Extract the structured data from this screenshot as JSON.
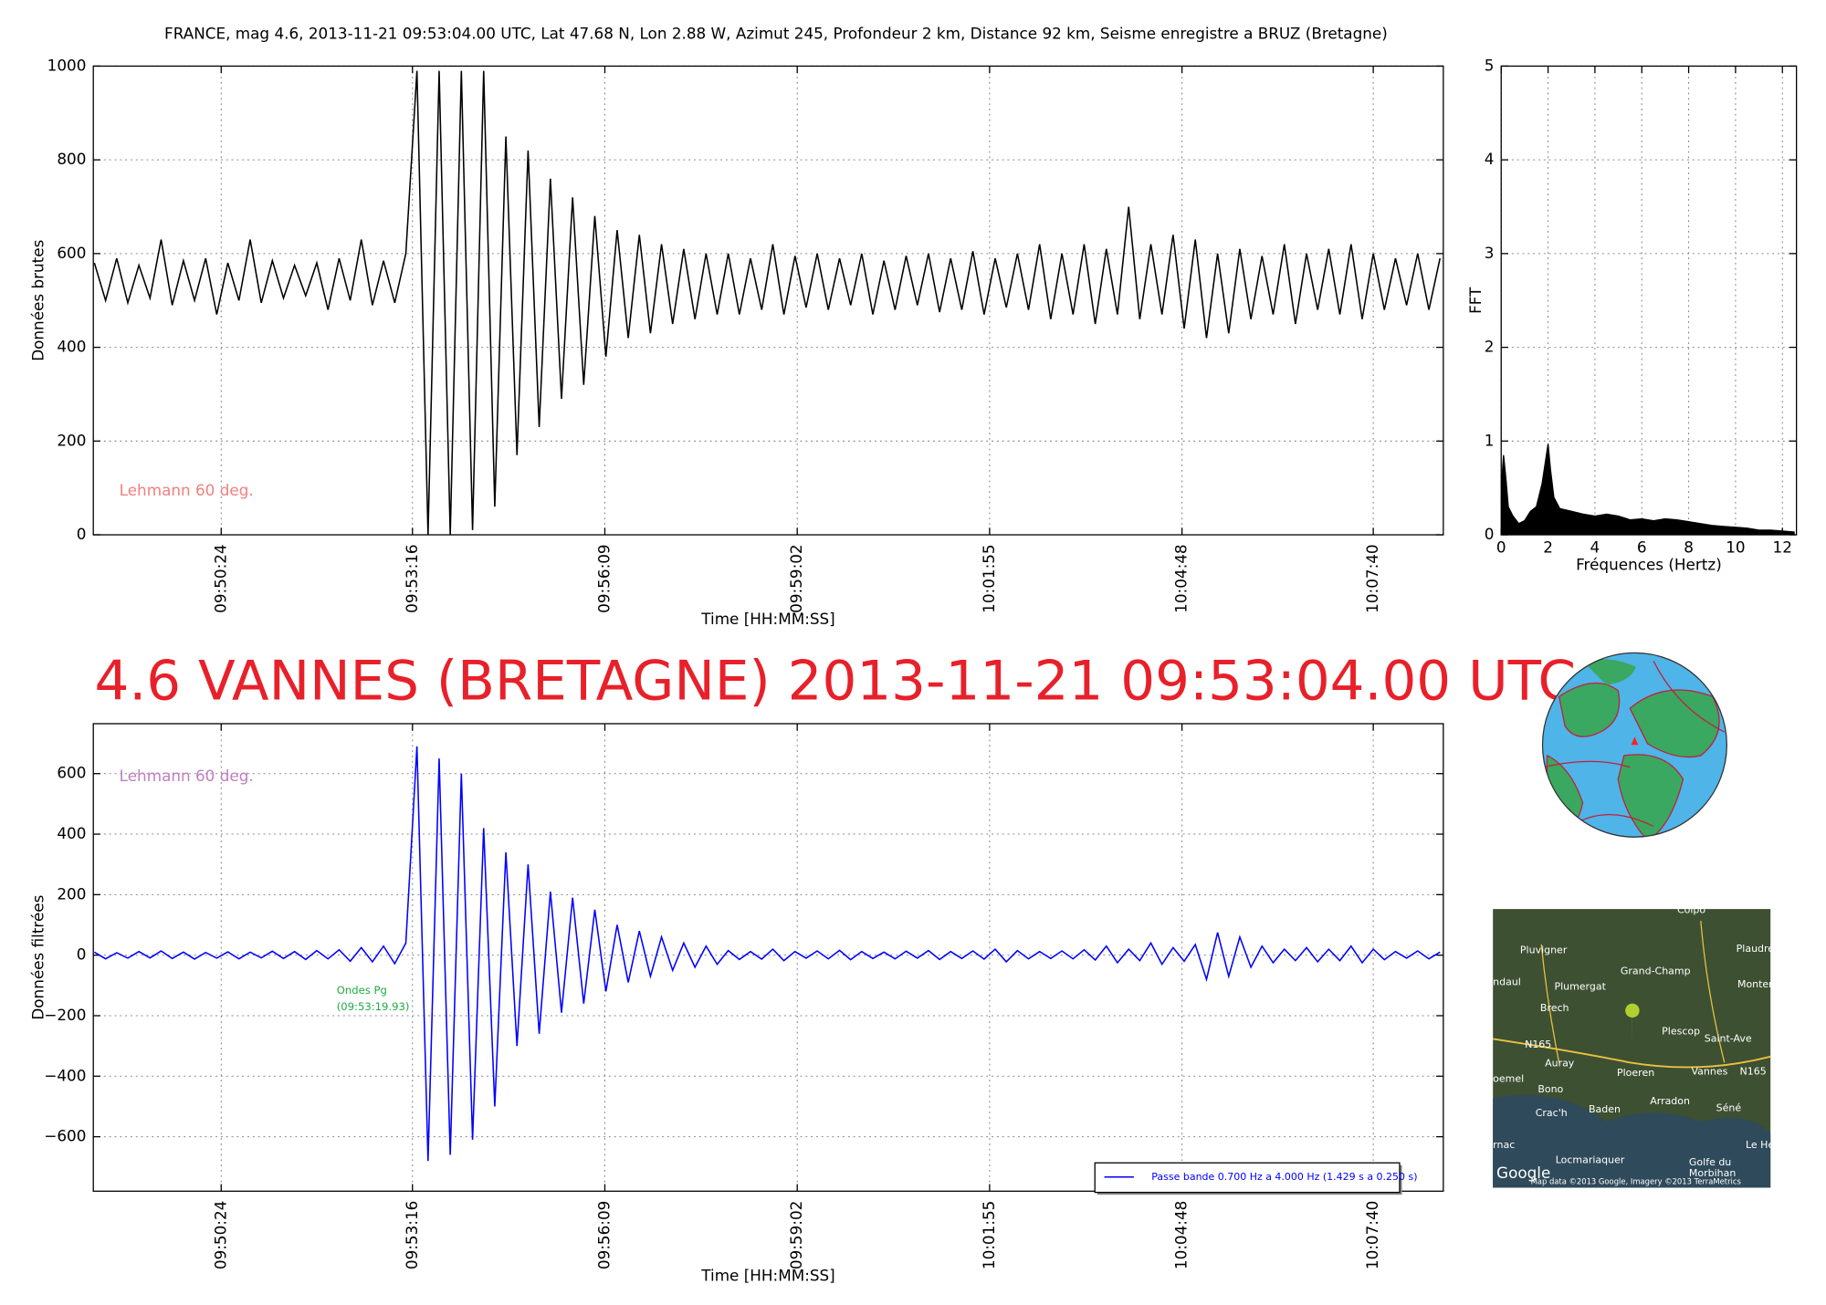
{
  "title": "FRANCE, mag 4.6, 2013-11-21 09:53:04.00 UTC, Lat 47.68 N, Lon 2.88 W, Azimut 245, Profondeur 2 km, Distance 92 km, Seisme enregistre a BRUZ (Bretagne)",
  "headline": "4.6 VANNES (BRETAGNE) 2013-11-21 09:53:04.00 UTC",
  "map": {
    "labels": [
      "Colpo",
      "Pluvigner",
      "Plaudren",
      "Grand-Champ",
      "Plumergat",
      "Monter",
      "ndaul",
      "Brech",
      "Plescop",
      "Saint-Ave",
      "N165",
      "Auray",
      "Ploeren",
      "Vannes",
      "N165",
      "oemel",
      "Bono",
      "Arradon",
      "Crac'h",
      "Baden",
      "Séné",
      "rnac",
      "Locmariaquer",
      "Golfe du",
      "Morbihan",
      "Le Hézo",
      "Google",
      "Map data ©2013 Google, Imagery ©2013 TerraMetrics"
    ]
  },
  "chart_data": [
    {
      "type": "line",
      "x_label": "Time [HH:MM:SS]",
      "y_label": "Données brutes",
      "color": "#000000",
      "grid": true,
      "annotations": [
        {
          "text": "Lehmann 60 deg.",
          "color": "#f08080"
        }
      ],
      "xlim": [
        "09:48:29",
        "10:08:43"
      ],
      "xticks": [
        "09:50:24",
        "09:53:16",
        "09:56:09",
        "09:59:02",
        "10:01:55",
        "10:04:48",
        "10:07:40"
      ],
      "ylim": [
        0,
        1000
      ],
      "yticks": [
        0,
        200,
        400,
        600,
        800,
        1000
      ],
      "x": [
        "09:48:30",
        "09:48:40",
        "09:48:50",
        "09:49:00",
        "09:49:10",
        "09:49:20",
        "09:49:30",
        "09:49:40",
        "09:49:50",
        "09:50:00",
        "09:50:10",
        "09:50:20",
        "09:50:30",
        "09:50:40",
        "09:50:50",
        "09:51:00",
        "09:51:10",
        "09:51:20",
        "09:51:30",
        "09:51:40",
        "09:51:50",
        "09:52:00",
        "09:52:10",
        "09:52:20",
        "09:52:30",
        "09:52:40",
        "09:52:50",
        "09:53:00",
        "09:53:10",
        "09:53:20",
        "09:53:30",
        "09:53:40",
        "09:53:50",
        "09:54:00",
        "09:54:10",
        "09:54:20",
        "09:54:30",
        "09:54:40",
        "09:54:50",
        "09:55:00",
        "09:55:10",
        "09:55:20",
        "09:55:30",
        "09:55:40",
        "09:55:50",
        "09:56:00",
        "09:56:10",
        "09:56:20",
        "09:56:30",
        "09:56:40",
        "09:56:50",
        "09:57:00",
        "09:57:10",
        "09:57:20",
        "09:57:30",
        "09:57:40",
        "09:57:50",
        "09:58:00",
        "09:58:10",
        "09:58:20",
        "09:58:30",
        "09:58:40",
        "09:58:50",
        "09:59:00",
        "09:59:10",
        "09:59:20",
        "09:59:30",
        "09:59:40",
        "09:59:50",
        "10:00:00",
        "10:00:10",
        "10:00:20",
        "10:00:30",
        "10:00:40",
        "10:00:50",
        "10:01:00",
        "10:01:10",
        "10:01:20",
        "10:01:30",
        "10:01:40",
        "10:01:50",
        "10:02:00",
        "10:02:10",
        "10:02:20",
        "10:02:30",
        "10:02:40",
        "10:02:50",
        "10:03:00",
        "10:03:10",
        "10:03:20",
        "10:03:30",
        "10:03:40",
        "10:03:50",
        "10:04:00",
        "10:04:10",
        "10:04:20",
        "10:04:30",
        "10:04:40",
        "10:04:50",
        "10:05:00",
        "10:05:10",
        "10:05:20",
        "10:05:30",
        "10:05:40",
        "10:05:50",
        "10:06:00",
        "10:06:10",
        "10:06:20",
        "10:06:30",
        "10:06:40",
        "10:06:50",
        "10:07:00",
        "10:07:10",
        "10:07:20",
        "10:07:30",
        "10:07:40",
        "10:07:50",
        "10:08:00",
        "10:08:10",
        "10:08:20",
        "10:08:30",
        "10:08:40"
      ],
      "values": [
        580,
        500,
        590,
        495,
        575,
        505,
        630,
        490,
        585,
        500,
        590,
        470,
        580,
        500,
        630,
        495,
        585,
        505,
        575,
        510,
        580,
        480,
        590,
        500,
        630,
        490,
        585,
        495,
        600,
        990,
        0,
        990,
        0,
        990,
        10,
        990,
        60,
        850,
        170,
        820,
        230,
        760,
        290,
        720,
        320,
        680,
        380,
        650,
        420,
        640,
        430,
        620,
        450,
        610,
        460,
        600,
        470,
        600,
        470,
        590,
        480,
        620,
        470,
        595,
        485,
        600,
        480,
        590,
        490,
        600,
        470,
        585,
        480,
        595,
        490,
        600,
        475,
        590,
        480,
        605,
        470,
        590,
        485,
        600,
        480,
        620,
        460,
        600,
        470,
        620,
        450,
        610,
        470,
        700,
        460,
        620,
        470,
        640,
        440,
        630,
        420,
        600,
        430,
        610,
        460,
        595,
        470,
        620,
        450,
        600,
        480,
        610,
        470,
        620,
        460,
        600,
        480,
        590,
        490,
        600,
        480,
        590
      ]
    },
    {
      "type": "area",
      "x_label": "Fréquences (Hertz)",
      "y_label": "FFT",
      "color": "#000000",
      "grid": true,
      "xlim": [
        0,
        12.6
      ],
      "xticks": [
        0,
        2,
        4,
        6,
        8,
        10,
        12
      ],
      "ylim": [
        0,
        5
      ],
      "yticks": [
        0,
        1,
        2,
        3,
        4,
        5
      ],
      "x": [
        0,
        0.1,
        0.2,
        0.3,
        0.5,
        0.75,
        1,
        1.25,
        1.5,
        1.75,
        2,
        2.1,
        2.25,
        2.5,
        3,
        3.5,
        4,
        4.5,
        5,
        5.5,
        6,
        6.5,
        7,
        7.5,
        8,
        8.5,
        9,
        9.5,
        10,
        10.5,
        11,
        11.5,
        12,
        12.5
      ],
      "values": [
        0.5,
        0.85,
        0.6,
        0.3,
        0.2,
        0.12,
        0.15,
        0.25,
        0.3,
        0.55,
        0.97,
        0.7,
        0.4,
        0.28,
        0.25,
        0.22,
        0.2,
        0.22,
        0.2,
        0.16,
        0.17,
        0.15,
        0.17,
        0.16,
        0.14,
        0.12,
        0.1,
        0.09,
        0.08,
        0.07,
        0.05,
        0.05,
        0.04,
        0.03
      ]
    },
    {
      "type": "line",
      "x_label": "Time [HH:MM:SS]",
      "y_label": "Données filtrées",
      "grid": true,
      "legend": "lower right",
      "annotations": [
        {
          "text": "Lehmann 60 deg.",
          "color": "#c080c0"
        },
        {
          "text": "Ondes Pg",
          "color": "#22aa44"
        },
        {
          "text": "(09:53:19.93)",
          "color": "#22aa44"
        }
      ],
      "xlim": [
        "09:48:29",
        "10:08:43"
      ],
      "xticks": [
        "09:50:24",
        "09:53:16",
        "09:56:09",
        "09:59:02",
        "10:01:55",
        "10:04:48",
        "10:07:40"
      ],
      "ylim": [
        -780,
        765
      ],
      "yticks": [
        {
          "value": -600,
          "label": "−600"
        },
        {
          "value": -400,
          "label": "−400"
        },
        {
          "value": -200,
          "label": "−200"
        },
        0,
        200,
        400,
        600
      ],
      "x": [
        "09:48:30",
        "09:48:40",
        "09:48:50",
        "09:49:00",
        "09:49:10",
        "09:49:20",
        "09:49:30",
        "09:49:40",
        "09:49:50",
        "09:50:00",
        "09:50:10",
        "09:50:20",
        "09:50:30",
        "09:50:40",
        "09:50:50",
        "09:51:00",
        "09:51:10",
        "09:51:20",
        "09:51:30",
        "09:51:40",
        "09:51:50",
        "09:52:00",
        "09:52:10",
        "09:52:20",
        "09:52:30",
        "09:52:40",
        "09:52:50",
        "09:53:00",
        "09:53:10",
        "09:53:20",
        "09:53:30",
        "09:53:40",
        "09:53:50",
        "09:54:00",
        "09:54:10",
        "09:54:20",
        "09:54:30",
        "09:54:40",
        "09:54:50",
        "09:55:00",
        "09:55:10",
        "09:55:20",
        "09:55:30",
        "09:55:40",
        "09:55:50",
        "09:56:00",
        "09:56:10",
        "09:56:20",
        "09:56:30",
        "09:56:40",
        "09:56:50",
        "09:57:00",
        "09:57:10",
        "09:57:20",
        "09:57:30",
        "09:57:40",
        "09:57:50",
        "09:58:00",
        "09:58:10",
        "09:58:20",
        "09:58:30",
        "09:58:40",
        "09:58:50",
        "09:59:00",
        "09:59:10",
        "09:59:20",
        "09:59:30",
        "09:59:40",
        "09:59:50",
        "10:00:00",
        "10:00:10",
        "10:00:20",
        "10:00:30",
        "10:00:40",
        "10:00:50",
        "10:01:00",
        "10:01:10",
        "10:01:20",
        "10:01:30",
        "10:01:40",
        "10:01:50",
        "10:02:00",
        "10:02:10",
        "10:02:20",
        "10:02:30",
        "10:02:40",
        "10:02:50",
        "10:03:00",
        "10:03:10",
        "10:03:20",
        "10:03:30",
        "10:03:40",
        "10:03:50",
        "10:04:00",
        "10:04:10",
        "10:04:20",
        "10:04:30",
        "10:04:40",
        "10:04:50",
        "10:05:00",
        "10:05:10",
        "10:05:20",
        "10:05:30",
        "10:05:40",
        "10:05:50",
        "10:06:00",
        "10:06:10",
        "10:06:20",
        "10:06:30",
        "10:06:40",
        "10:06:50",
        "10:07:00",
        "10:07:10",
        "10:07:20",
        "10:07:30",
        "10:07:40",
        "10:07:50",
        "10:08:00",
        "10:08:10",
        "10:08:20",
        "10:08:30",
        "10:08:40"
      ],
      "series": [
        {
          "name": "Passe bande 0.700 Hz a 4.000 Hz (1.429 s a 0.250 s)",
          "color": "#0000ff",
          "values": [
            10,
            -12,
            8,
            -10,
            12,
            -9,
            14,
            -11,
            10,
            -13,
            9,
            -10,
            11,
            -12,
            10,
            -9,
            13,
            -11,
            12,
            -14,
            15,
            -12,
            18,
            -20,
            25,
            -22,
            30,
            -28,
            40,
            690,
            -680,
            650,
            -660,
            600,
            -610,
            420,
            -500,
            340,
            -300,
            300,
            -260,
            210,
            -190,
            190,
            -160,
            150,
            -120,
            100,
            -90,
            80,
            -70,
            60,
            -50,
            40,
            -40,
            30,
            -30,
            15,
            -14,
            12,
            -13,
            20,
            -18,
            12,
            -10,
            14,
            -12,
            16,
            -15,
            12,
            -11,
            10,
            -12,
            13,
            -10,
            15,
            -14,
            12,
            -11,
            14,
            -13,
            20,
            -22,
            15,
            -12,
            12,
            -11,
            14,
            -12,
            18,
            -16,
            30,
            -25,
            20,
            -18,
            40,
            -30,
            25,
            -20,
            35,
            -80,
            75,
            -70,
            60,
            -40,
            30,
            -25,
            20,
            -18,
            25,
            -22,
            20,
            -18,
            30,
            -25,
            20,
            -15,
            12,
            -10,
            14,
            -12,
            10
          ]
        }
      ]
    }
  ]
}
